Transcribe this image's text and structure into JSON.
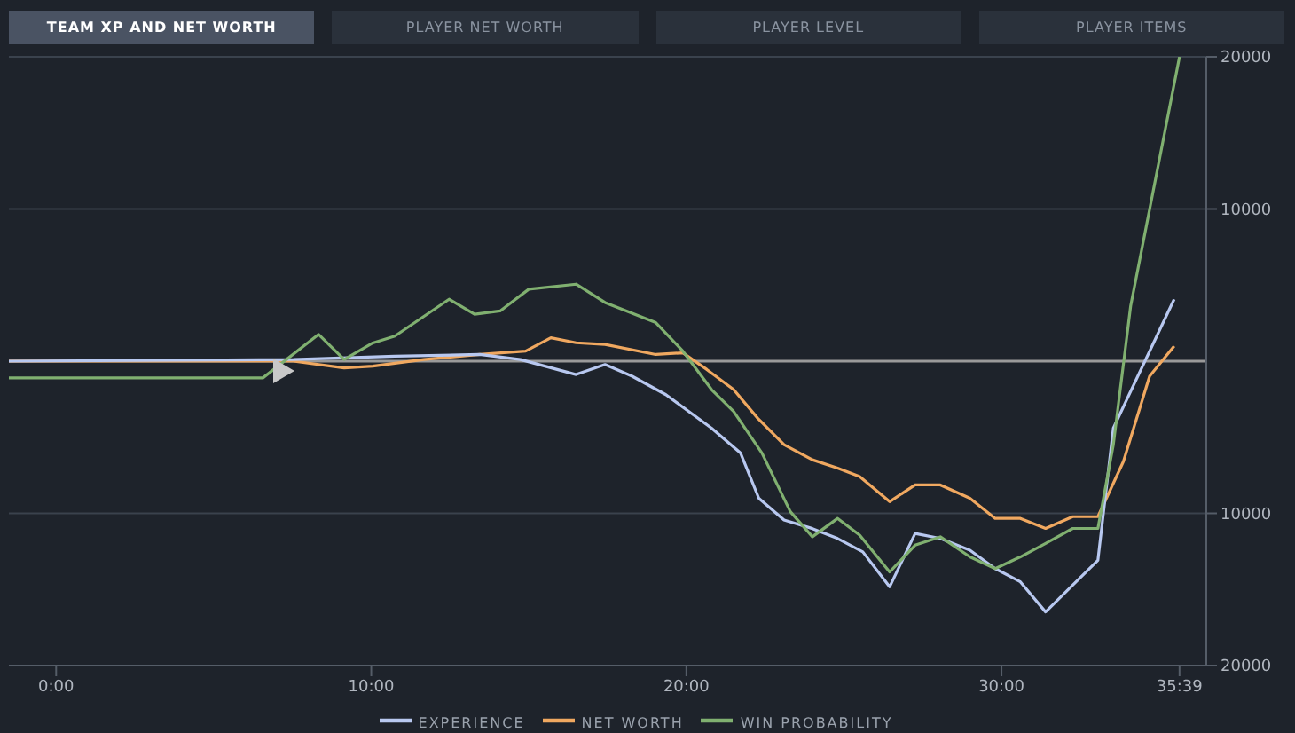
{
  "chart_data": {
    "type": "line",
    "annotations": [
      "TEAM XP AND NET WORTH",
      "PLAYER NET WORTH",
      "PLAYER LEVEL",
      "PLAYER ITEMS"
    ],
    "series": [
      {
        "name": "NET WORTH",
        "color": "#f0a860",
        "x": [
          -1.5,
          7.53,
          9.14,
          10.05,
          11.67,
          13.44,
          14.9,
          15.7,
          16.5,
          17.42,
          19.03,
          19.89,
          20.65,
          21.5,
          22.26,
          23.1,
          24.0,
          24.8,
          25.5,
          26.45,
          27.26,
          28.06,
          29.0,
          29.8,
          30.6,
          31.4,
          32.26,
          33.06,
          33.87,
          34.7,
          35.48
        ],
        "values": [
          0,
          0,
          -440,
          -330,
          110,
          440,
          660,
          1540,
          1210,
          1100,
          440,
          550,
          -550,
          -1870,
          -3740,
          -5490,
          -6480,
          -7030,
          -7580,
          -9230,
          -8130,
          -8130,
          -9010,
          -10330,
          -10330,
          -10990,
          -10220,
          -10220,
          -6590,
          -990,
          990
        ]
      },
      {
        "name": "EXPERIENCE",
        "color": "#b8c8f0",
        "x": [
          -1.5,
          7.53,
          10.75,
          13.44,
          14.73,
          16.5,
          17.42,
          18.28,
          19.35,
          20.8,
          21.72,
          22.3,
          23.1,
          24.0,
          24.8,
          25.6,
          26.45,
          27.26,
          28.06,
          29.0,
          29.8,
          30.6,
          31.4,
          32.26,
          33.06,
          33.55,
          35.48
        ],
        "values": [
          0,
          110,
          330,
          440,
          110,
          -880,
          -220,
          -990,
          -2200,
          -4400,
          -6040,
          -9010,
          -10440,
          -11000,
          -11650,
          -12530,
          -14830,
          -11320,
          -11650,
          -12420,
          -13630,
          -14500,
          -16480,
          -14720,
          -13080,
          -4400,
          4070
        ]
      },
      {
        "name": "WIN PROBABILITY",
        "color": "#80b070",
        "x": [
          -1.5,
          6.56,
          8.33,
          9.14,
          10.05,
          10.75,
          12.47,
          13.28,
          14.09,
          15.0,
          16.5,
          17.42,
          19.03,
          19.89,
          20.8,
          21.5,
          22.4,
          23.3,
          24.0,
          24.8,
          25.5,
          26.45,
          27.26,
          28.06,
          29.0,
          29.8,
          30.6,
          31.4,
          32.26,
          33.06,
          33.55,
          34.1,
          35.65
        ],
        "values": [
          -1100,
          -1100,
          1760,
          110,
          1200,
          1650,
          4070,
          3080,
          3300,
          4730,
          5060,
          3850,
          2530,
          660,
          -1870,
          -3300,
          -6040,
          -9890,
          -11540,
          -10330,
          -11430,
          -13850,
          -12090,
          -11540,
          -12860,
          -13630,
          -12860,
          -11980,
          -10990,
          -10990,
          -5490,
          3630,
          20000
        ]
      }
    ],
    "xlim": [
      -1.5,
      36.5
    ],
    "xticks": [
      {
        "value": 0,
        "label": "0:00"
      },
      {
        "value": 10,
        "label": "10:00"
      },
      {
        "value": 20,
        "label": "20:00"
      },
      {
        "value": 30,
        "label": "30:00"
      },
      {
        "value": 35.65,
        "label": "35:39"
      }
    ],
    "ylim": [
      -20000,
      20000
    ],
    "yticks": [
      {
        "value": -20000,
        "label": "20000"
      },
      {
        "value": -10000,
        "label": "10000"
      },
      10000,
      20000
    ],
    "ref_lines": [
      {
        "axis": "y",
        "value": 0,
        "color": "#9a9a9a"
      }
    ],
    "grid": "y",
    "legend": "bottom",
    "marker": "none",
    "line_style": "solid"
  }
}
